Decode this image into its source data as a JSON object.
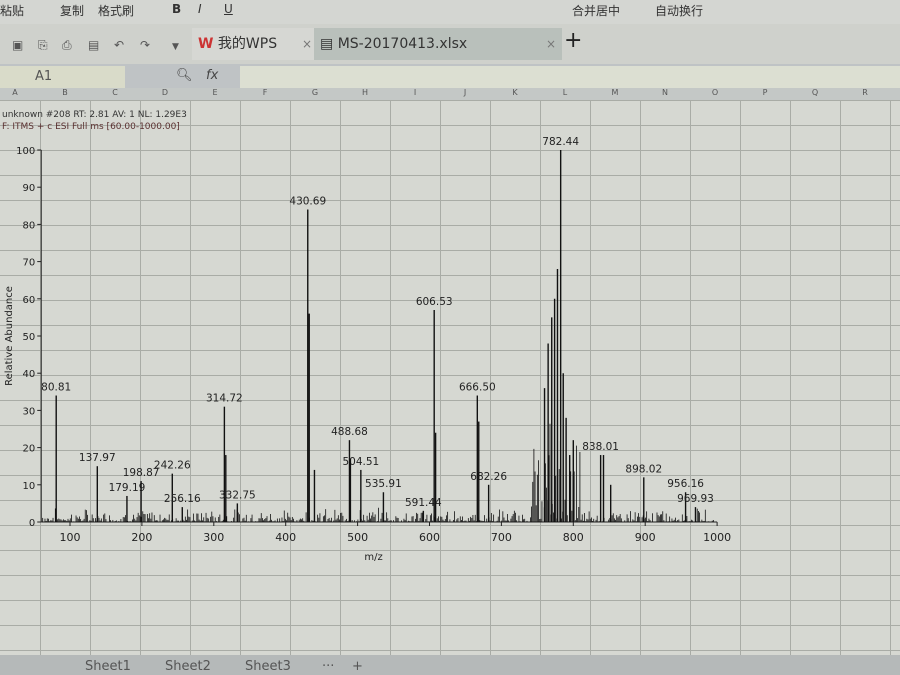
{
  "ribbon": {
    "paste": "粘贴",
    "copy": "复制",
    "format_painter": "格式刷",
    "bold": "B",
    "italic": "I",
    "underline": "U",
    "merge": "合并居中",
    "wrap": "自动换行"
  },
  "tabs": [
    {
      "label": "我的WPS",
      "close": "×"
    },
    {
      "label": "MS-20170413.xlsx",
      "close": "×"
    }
  ],
  "new_tab": "+",
  "formula_bar": {
    "name_box": "A1",
    "fx": "fx",
    "value": ""
  },
  "columns": [
    "A",
    "B",
    "C",
    "D",
    "E",
    "F",
    "G",
    "H",
    "I",
    "J",
    "K",
    "L",
    "M",
    "N",
    "O",
    "P",
    "Q",
    "R"
  ],
  "sheets": [
    "Sheet1",
    "Sheet2",
    "Sheet3"
  ],
  "sheet_more": "···",
  "sheet_add": "+",
  "chart_data": {
    "type": "bar",
    "header_line1": "unknown #208  RT: 2.81  AV: 1  NL: 1.29E3",
    "header_line2": "F: ITMS + c ESI Full ms [60.00-1000.00]",
    "xlabel": "m/z",
    "ylabel": "Relative Abundance",
    "xlim": [
      60,
      1000
    ],
    "ylim": [
      0,
      100
    ],
    "xticks": [
      100,
      200,
      300,
      400,
      500,
      600,
      700,
      800,
      900,
      1000
    ],
    "yticks": [
      0,
      10,
      20,
      30,
      40,
      50,
      60,
      70,
      80,
      90,
      100
    ],
    "grid": false,
    "peaks": [
      {
        "mz": 80.81,
        "abundance": 34,
        "label": "80.81"
      },
      {
        "mz": 137.97,
        "abundance": 15,
        "label": "137.97"
      },
      {
        "mz": 179.19,
        "abundance": 7,
        "label": "179.19"
      },
      {
        "mz": 198.87,
        "abundance": 11,
        "label": "198.87"
      },
      {
        "mz": 242.26,
        "abundance": 13,
        "label": "242.26"
      },
      {
        "mz": 256.16,
        "abundance": 4,
        "label": "256.16"
      },
      {
        "mz": 314.72,
        "abundance": 31,
        "label": "314.72"
      },
      {
        "mz": 332.75,
        "abundance": 5,
        "label": "332.75"
      },
      {
        "mz": 430.69,
        "abundance": 84,
        "label": "430.69"
      },
      {
        "mz": 488.68,
        "abundance": 22,
        "label": "488.68"
      },
      {
        "mz": 504.51,
        "abundance": 14,
        "label": "504.51"
      },
      {
        "mz": 535.91,
        "abundance": 8,
        "label": "535.91"
      },
      {
        "mz": 591.44,
        "abundance": 3,
        "label": "591.44"
      },
      {
        "mz": 606.53,
        "abundance": 57,
        "label": "606.53"
      },
      {
        "mz": 666.5,
        "abundance": 34,
        "label": "666.50"
      },
      {
        "mz": 682.26,
        "abundance": 10,
        "label": "682.26"
      },
      {
        "mz": 782.44,
        "abundance": 100,
        "label": "782.44"
      },
      {
        "mz": 838.01,
        "abundance": 18,
        "label": "838.01"
      },
      {
        "mz": 898.02,
        "abundance": 12,
        "label": "898.02"
      },
      {
        "mz": 956.16,
        "abundance": 8,
        "label": "956.16"
      },
      {
        "mz": 969.93,
        "abundance": 4,
        "label": "969.93"
      },
      {
        "mz": 432.7,
        "abundance": 56
      },
      {
        "mz": 316.7,
        "abundance": 18
      },
      {
        "mz": 608.5,
        "abundance": 24
      },
      {
        "mz": 668.5,
        "abundance": 27
      },
      {
        "mz": 760,
        "abundance": 36
      },
      {
        "mz": 765,
        "abundance": 48
      },
      {
        "mz": 770,
        "abundance": 55
      },
      {
        "mz": 774,
        "abundance": 60
      },
      {
        "mz": 778,
        "abundance": 68
      },
      {
        "mz": 786,
        "abundance": 40
      },
      {
        "mz": 790,
        "abundance": 28
      },
      {
        "mz": 795,
        "abundance": 18
      },
      {
        "mz": 800,
        "abundance": 22
      },
      {
        "mz": 842,
        "abundance": 18
      },
      {
        "mz": 852,
        "abundance": 10
      },
      {
        "mz": 490,
        "abundance": 17
      },
      {
        "mz": 440,
        "abundance": 14
      }
    ]
  }
}
